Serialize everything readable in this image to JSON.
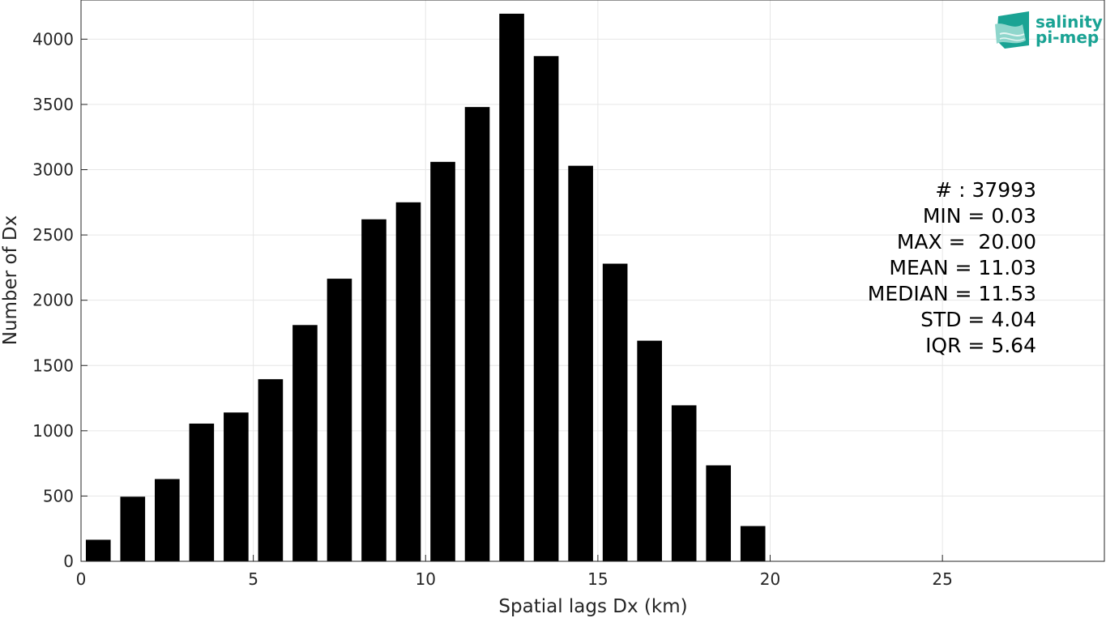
{
  "chart_data": {
    "type": "bar",
    "bin_width": 1,
    "x": [
      0.5,
      1.5,
      2.5,
      3.5,
      4.5,
      5.5,
      6.5,
      7.5,
      8.5,
      9.5,
      10.5,
      11.5,
      12.5,
      13.5,
      14.5,
      15.5,
      16.5,
      17.5,
      18.5,
      19.5
    ],
    "values": [
      165,
      495,
      630,
      1055,
      1140,
      1395,
      1810,
      2165,
      2620,
      2750,
      3060,
      3480,
      4195,
      3870,
      3030,
      2280,
      1690,
      1195,
      735,
      270
    ],
    "xlabel": "Spatial lags Dx (km)",
    "ylabel": "Number of Dx",
    "xlim": [
      0,
      29.7
    ],
    "ylim": [
      0,
      4300
    ],
    "xticks": [
      0,
      5,
      10,
      15,
      20,
      25
    ],
    "yticks": [
      0,
      500,
      1000,
      1500,
      2000,
      2500,
      3000,
      3500,
      4000
    ],
    "grid": true,
    "bar_color": "#000000",
    "annotations": [
      "# : 37993",
      "MIN = 0.03",
      "MAX =  20.00",
      "MEAN = 11.03",
      "MEDIAN = 11.53",
      "STD = 4.04",
      "IQR = 5.64"
    ]
  },
  "logo": {
    "line1": "salinity",
    "line2": "pi-mep",
    "color": "#1aa394"
  }
}
